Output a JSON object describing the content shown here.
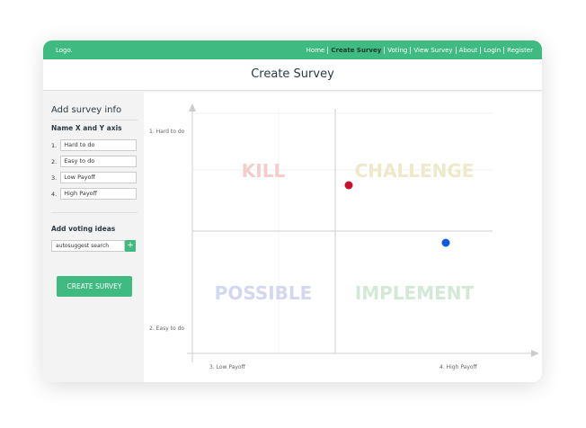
{
  "header": {
    "logo": "Logo.",
    "nav": [
      "Home",
      "Create Survey",
      "Voting",
      "View Survey",
      "About",
      "Login",
      "Register"
    ],
    "active": "Create Survey"
  },
  "page_title": "Create Survey",
  "sidebar": {
    "heading": "Add survey info",
    "axis_heading": "Name X and Y axis",
    "fields": [
      {
        "number": "1.",
        "value": "Hard to do"
      },
      {
        "number": "2.",
        "value": "Easy to do"
      },
      {
        "number": "3.",
        "value": "Low Payoff"
      },
      {
        "number": "4.",
        "value": "High Payoff"
      }
    ],
    "ideas_heading": "Add voting ideas",
    "search_placeholder": "autosuggest search",
    "add_button": "+",
    "submit_button": "CREATE SURVEY"
  },
  "matrix": {
    "y_top": "1. Hard to do",
    "y_bottom": "2. Easy to do",
    "x_left": "3. Low Payoff",
    "x_right": "4. High Payoff",
    "quadrants": [
      "KILL",
      "CHALLENGE",
      "POSSIBLE",
      "IMPLEMENT"
    ]
  }
}
